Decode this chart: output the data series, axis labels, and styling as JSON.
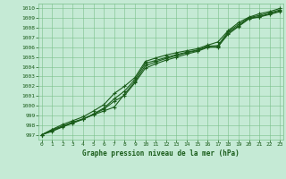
{
  "xlabel": "Graphe pression niveau de la mer (hPa)",
  "x_ticks": [
    0,
    1,
    2,
    3,
    4,
    5,
    6,
    7,
    8,
    9,
    10,
    11,
    12,
    13,
    14,
    15,
    16,
    17,
    18,
    19,
    20,
    21,
    22,
    23
  ],
  "ylim": [
    996.5,
    1010.5
  ],
  "xlim": [
    -0.3,
    23.3
  ],
  "yticks": [
    997,
    998,
    999,
    1000,
    1001,
    1002,
    1003,
    1004,
    1005,
    1006,
    1007,
    1008,
    1009,
    1010
  ],
  "bg_color": "#c5ead5",
  "grid_color": "#7abf8a",
  "line_color": "#1a5c1a",
  "line1": [
    997.0,
    997.5,
    997.9,
    998.3,
    998.65,
    999.05,
    999.45,
    999.85,
    1001.2,
    1002.5,
    1004.1,
    1004.5,
    1004.85,
    1005.15,
    1005.45,
    1005.65,
    1006.05,
    1006.0,
    1007.5,
    1008.2,
    1009.0,
    1009.15,
    1009.45,
    1009.75
  ],
  "line2": [
    997.0,
    997.4,
    997.85,
    998.25,
    998.6,
    999.15,
    999.75,
    1000.7,
    1001.5,
    1002.7,
    1004.35,
    1004.65,
    1004.95,
    1005.25,
    1005.5,
    1005.72,
    1006.12,
    1006.18,
    1007.62,
    1008.35,
    1009.05,
    1009.28,
    1009.55,
    1009.85
  ],
  "line3": [
    997.0,
    997.55,
    998.05,
    998.45,
    998.85,
    999.45,
    1000.1,
    1001.25,
    1002.0,
    1002.9,
    1004.55,
    1004.9,
    1005.2,
    1005.45,
    1005.65,
    1005.85,
    1006.22,
    1006.55,
    1007.72,
    1008.55,
    1009.1,
    1009.45,
    1009.68,
    1010.0
  ],
  "line4": [
    997.0,
    997.35,
    997.8,
    998.2,
    998.6,
    999.1,
    999.65,
    1000.45,
    1001.05,
    1002.35,
    1003.85,
    1004.3,
    1004.68,
    1004.98,
    1005.3,
    1005.58,
    1005.98,
    1006.08,
    1007.35,
    1008.15,
    1008.92,
    1009.12,
    1009.38,
    1009.68
  ]
}
